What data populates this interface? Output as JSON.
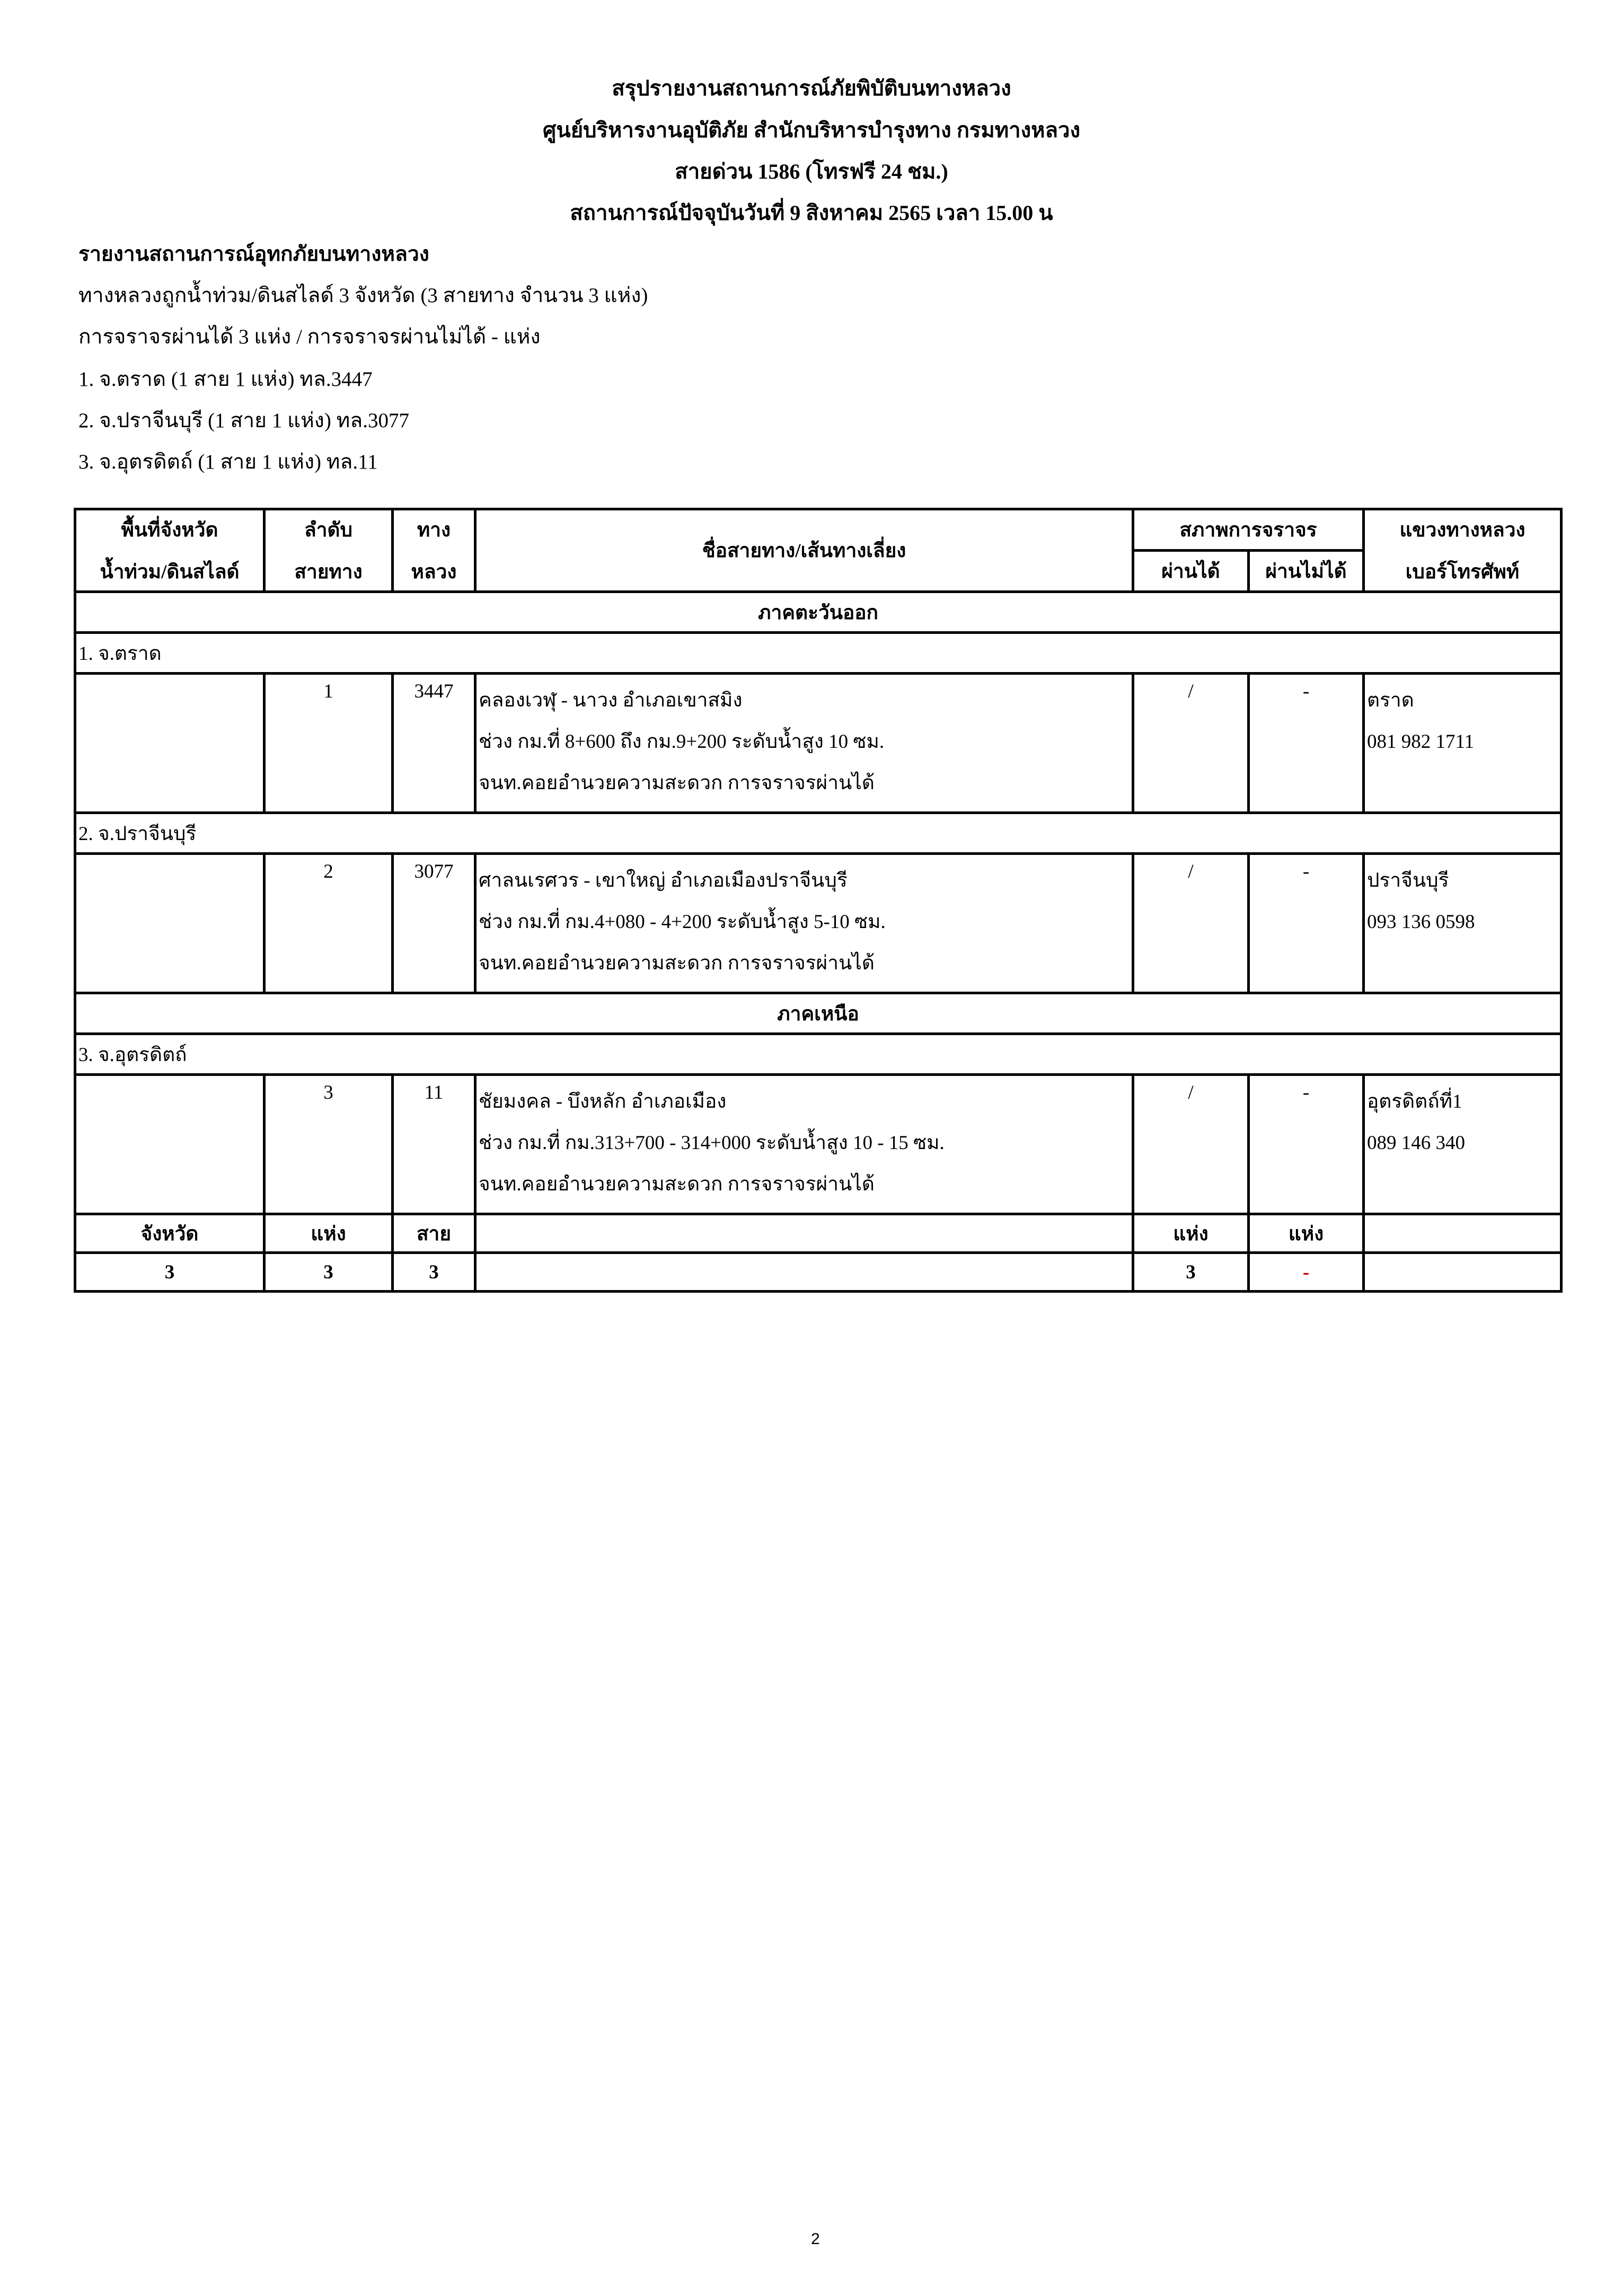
{
  "header": {
    "title": "สรุปรายงานสถานการณ์ภัยพิบัติบนทางหลวง",
    "org": "ศูนย์บริหารงานอุบัติภัย สำนักบริหารบำรุงทาง กรมทางหลวง",
    "hotline": "สายด่วน 1586 (โทรฟรี 24 ชม.)",
    "status_time": "สถานการณ์ปัจจุบันวันที่  9 สิงหาคม 2565   เวลา 15.00 น"
  },
  "summary": {
    "heading": "รายงานสถานการณ์อุทกภัยบนทางหลวง",
    "line1": "ทางหลวงถูกน้ำท่วม/ดินสไลด์ 3 จังหวัด (3 สายทาง จำนวน 3 แห่ง)",
    "line2": "การจราจรผ่านได้ 3 แห่ง / การจราจรผ่านไม่ได้ - แห่ง",
    "items": [
      "1.  จ.ตราด (1 สาย 1 แห่ง) ทล.3447",
      "2.  จ.ปราจีนบุรี  (1 สาย 1 แห่ง) ทล.3077",
      "3.  จ.อุตรดิตถ์ (1 สาย 1 แห่ง) ทล.11"
    ]
  },
  "table": {
    "headers": {
      "area_1": "พื้นที่จังหวัด",
      "area_2": "น้ำท่วม/ดินสไลด์",
      "seq_1": "ลำดับ",
      "seq_2": "สายทาง",
      "hw_1": "ทาง",
      "hw_2": "หลวง",
      "route": "ชื่อสายทาง/เส้นทางเลี่ยง",
      "traffic": "สภาพการจราจร",
      "pass": "ผ่านได้",
      "nopass": "ผ่านไม่ได้",
      "office_1": "แขวงทางหลวง",
      "office_2": "เบอร์โทรศัพท์"
    },
    "regions": [
      {
        "name": "ภาคตะวันออก",
        "provinces": [
          {
            "name": "1. จ.ตราด",
            "row": {
              "seq": "1",
              "hw": "3447",
              "lines": [
                "คลองเวฬุ - นาวง  อำเภอเขาสมิง",
                "ช่วง กม.ที่ 8+600 ถึง กม.9+200 ระดับน้ำสูง 10 ซม.",
                "จนท.คอยอำนวยความสะดวก การจราจรผ่านได้"
              ],
              "pass": "/",
              "nopass": "-",
              "office": "ตราด",
              "phone": "081 982 1711"
            }
          },
          {
            "name": "2. จ.ปราจีนบุรี",
            "row": {
              "seq": "2",
              "hw": "3077",
              "lines": [
                "ศาลนเรศวร - เขาใหญ่ อำเภอเมืองปราจีนบุรี",
                "ช่วง กม.ที่ กม.4+080 - 4+200 ระดับน้ำสูง 5-10 ซม.",
                "จนท.คอยอำนวยความสะดวก การจราจรผ่านได้"
              ],
              "pass": "/",
              "nopass": "-",
              "office": "ปราจีนบุรี",
              "phone": "093 136 0598"
            }
          }
        ]
      },
      {
        "name": "ภาคเหนือ",
        "provinces": [
          {
            "name": "3. จ.อุตรดิตถ์",
            "row": {
              "seq": "3",
              "hw": "11",
              "lines": [
                "ชัยมงคล - บึงหลัก อำเภอเมือง",
                "ช่วง กม.ที่ กม.313+700 - 314+000 ระดับน้ำสูง 10 - 15 ซม.",
                "จนท.คอยอำนวยความสะดวก การจราจรผ่านได้"
              ],
              "pass": "/",
              "nopass": "-",
              "office": "อุตรดิตถ์ที่1",
              "phone": "089 146 340"
            }
          }
        ]
      }
    ],
    "totals": {
      "labels": {
        "province": "จังหวัด",
        "seq": "แห่ง",
        "hw": "สาย",
        "pass": "แห่ง",
        "nopass": "แห่ง"
      },
      "values": {
        "province": "3",
        "seq": "3",
        "hw": "3",
        "pass": "3",
        "nopass": "-"
      }
    }
  },
  "page_number": "2",
  "colors": {
    "nopass_total": "#c00000"
  }
}
